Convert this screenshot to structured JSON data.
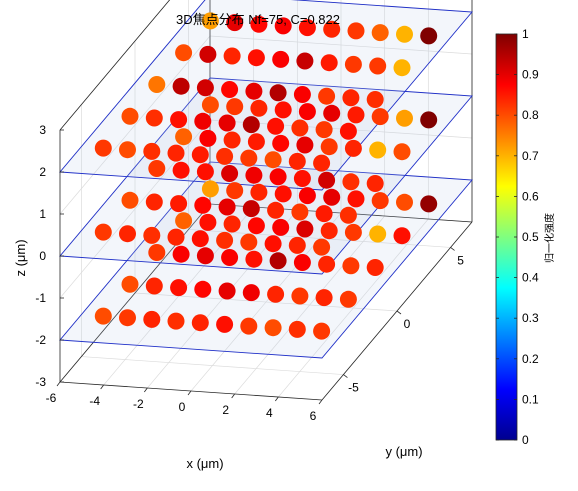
{
  "chart_data": {
    "type": "scatter3d",
    "title": "3D焦点分布 Nf=75, C=0.822",
    "xlabel": "x (μm)",
    "ylabel": "y (μm)",
    "zlabel": "z (μm)",
    "xlim": [
      -6,
      6
    ],
    "ylim": [
      -7,
      7
    ],
    "zlim": [
      -3,
      3
    ],
    "x_ticks": [
      "-6",
      "-4",
      "-2",
      "0",
      "2",
      "4",
      "6"
    ],
    "y_ticks": [
      "-5",
      "0",
      "5"
    ],
    "z_ticks": [
      "-3",
      "-2",
      "-1",
      "0",
      "1",
      "2",
      "3"
    ],
    "grid": true,
    "planes_z": [
      -2,
      0,
      2
    ],
    "colormap": "jet",
    "colorbar": {
      "label": "归一化强度",
      "range": [
        0,
        1
      ],
      "ticks": [
        "0",
        "0.1",
        "0.2",
        "0.3",
        "0.4",
        "0.5",
        "0.6",
        "0.7",
        "0.8",
        "0.9",
        "1"
      ]
    },
    "layers": [
      {
        "z": 2,
        "intensities": [
          [
            0.72,
            0.9,
            0.87,
            0.88,
            0.86,
            0.84,
            0.82,
            0.78,
            0.7,
            1.0
          ],
          [
            0.8,
            0.92,
            0.84,
            0.86,
            0.88,
            0.93,
            0.85,
            0.82,
            0.82,
            0.7
          ],
          [
            0.76,
            0.94,
            0.92,
            0.87,
            0.9,
            0.95,
            0.88,
            0.82,
            0.84,
            0.83
          ],
          [
            0.8,
            0.83,
            0.86,
            0.89,
            0.9,
            0.95,
            0.86,
            0.83,
            0.82,
            0.86
          ],
          [
            0.82,
            0.8,
            0.83,
            0.84,
            0.85,
            0.83,
            0.82,
            0.8,
            0.84,
            0.84
          ]
        ]
      },
      {
        "z": 0,
        "intensities": [
          [
            0.8,
            0.82,
            0.84,
            0.86,
            0.88,
            0.9,
            0.85,
            0.82,
            0.72,
            1.0
          ],
          [
            0.78,
            0.88,
            0.84,
            0.85,
            0.87,
            0.9,
            0.82,
            0.84,
            0.7,
            0.8
          ],
          [
            0.82,
            0.86,
            0.86,
            0.91,
            0.89,
            0.88,
            0.86,
            0.92,
            0.83,
            0.84
          ],
          [
            0.8,
            0.84,
            0.85,
            0.87,
            0.9,
            0.93,
            0.84,
            0.82,
            0.85,
            0.83
          ],
          [
            0.82,
            0.84,
            0.83,
            0.84,
            0.86,
            0.83,
            0.82,
            0.86,
            0.84,
            0.82
          ]
        ]
      },
      {
        "z": -2,
        "intensities": [
          [
            0.72,
            0.82,
            0.84,
            0.86,
            0.88,
            0.9,
            0.86,
            0.82,
            0.8,
            0.98
          ],
          [
            0.78,
            0.86,
            0.84,
            0.87,
            0.88,
            0.91,
            0.84,
            0.82,
            0.7,
            0.86
          ],
          [
            0.82,
            0.88,
            0.9,
            0.88,
            0.86,
            0.95,
            0.88,
            0.84,
            0.82,
            0.84
          ],
          [
            0.8,
            0.84,
            0.86,
            0.87,
            0.9,
            0.89,
            0.84,
            0.82,
            0.84,
            0.82
          ],
          [
            0.8,
            0.82,
            0.84,
            0.83,
            0.84,
            0.86,
            0.82,
            0.8,
            0.83,
            0.82
          ]
        ]
      }
    ]
  }
}
